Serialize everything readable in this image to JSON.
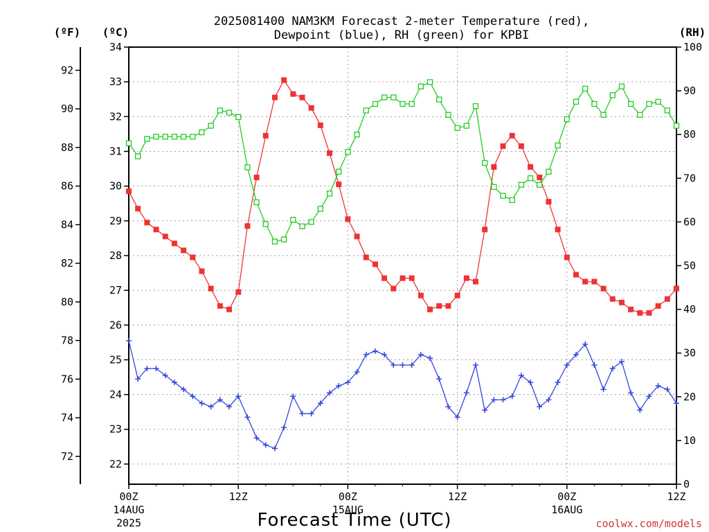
{
  "chart_data": {
    "type": "line",
    "title_lines": [
      "2025081400 NAM3KM Forecast 2-meter Temperature (red),",
      "Dewpoint (blue), RH (green) for KPBI"
    ],
    "xlabel": "Forecast Time (UTC)",
    "credit": "coolwx.com/models",
    "units": {
      "fahrenheit": "(ºF)",
      "celsius": "(ºC)",
      "rh": "(RH)"
    },
    "x_range_hours": [
      0,
      60
    ],
    "x_ticks": [
      {
        "hour": 0,
        "label": "00Z",
        "date": "14AUG",
        "year": "2025"
      },
      {
        "hour": 12,
        "label": "12Z",
        "date": "",
        "year": ""
      },
      {
        "hour": 24,
        "label": "00Z",
        "date": "15AUG",
        "year": ""
      },
      {
        "hour": 36,
        "label": "12Z",
        "date": "",
        "year": ""
      },
      {
        "hour": 48,
        "label": "00Z",
        "date": "16AUG",
        "year": ""
      },
      {
        "hour": 60,
        "label": "12Z",
        "date": "",
        "year": ""
      }
    ],
    "celsius_range": [
      21.42,
      34
    ],
    "celsius_ticks": [
      22,
      23,
      24,
      25,
      26,
      27,
      28,
      29,
      30,
      31,
      32,
      33,
      34
    ],
    "fahrenheit_ticks": [
      72,
      74,
      76,
      78,
      80,
      82,
      84,
      86,
      88,
      90,
      92
    ],
    "rh_range": [
      0,
      100
    ],
    "rh_ticks": [
      0,
      10,
      20,
      30,
      40,
      50,
      60,
      70,
      80,
      90,
      100
    ],
    "grid": true,
    "series": [
      {
        "variable": "temperature",
        "axis": "celsius",
        "color": "#ee3333",
        "marker": "filled-square",
        "x": [
          0,
          1,
          2,
          3,
          4,
          5,
          6,
          7,
          8,
          9,
          10,
          11,
          12,
          13,
          14,
          15,
          16,
          17,
          18,
          19,
          20,
          21,
          22,
          23,
          24,
          25,
          26,
          27,
          28,
          29,
          30,
          31,
          32,
          33,
          34,
          35,
          36,
          37,
          38,
          39,
          40,
          41,
          42,
          43,
          44,
          45,
          46,
          47,
          48,
          49,
          50,
          51,
          52,
          53,
          54,
          55,
          56,
          57,
          58,
          59,
          60
        ],
        "values": [
          29.85,
          29.35,
          28.95,
          28.75,
          28.55,
          28.35,
          28.15,
          27.95,
          27.55,
          27.05,
          26.55,
          26.45,
          26.95,
          28.85,
          30.25,
          31.45,
          32.55,
          33.05,
          32.65,
          32.55,
          32.25,
          31.75,
          30.95,
          30.05,
          29.05,
          28.55,
          27.95,
          27.75,
          27.35,
          27.05,
          27.35,
          27.35,
          26.85,
          26.45,
          26.55,
          26.55,
          26.85,
          27.35,
          27.25,
          28.75,
          30.55,
          31.15,
          31.45,
          31.15,
          30.55,
          30.25,
          29.55,
          28.75,
          27.95,
          27.45,
          27.25,
          27.25,
          27.05,
          26.75,
          26.65,
          26.45,
          26.35,
          26.35,
          26.55,
          26.75,
          27.05
        ]
      },
      {
        "variable": "dewpoint",
        "axis": "celsius",
        "color": "#3344dd",
        "marker": "plus",
        "x": [
          0,
          1,
          2,
          3,
          4,
          5,
          6,
          7,
          8,
          9,
          10,
          11,
          12,
          13,
          14,
          15,
          16,
          17,
          18,
          19,
          20,
          21,
          22,
          23,
          24,
          25,
          26,
          27,
          28,
          29,
          30,
          31,
          32,
          33,
          34,
          35,
          36,
          37,
          38,
          39,
          40,
          41,
          42,
          43,
          44,
          45,
          46,
          47,
          48,
          49,
          50,
          51,
          52,
          53,
          54,
          55,
          56,
          57,
          58,
          59,
          60
        ],
        "values": [
          25.55,
          24.45,
          24.75,
          24.75,
          24.55,
          24.35,
          24.15,
          23.95,
          23.75,
          23.65,
          23.85,
          23.65,
          23.95,
          23.35,
          22.75,
          22.55,
          22.45,
          23.05,
          23.95,
          23.45,
          23.45,
          23.75,
          24.05,
          24.25,
          24.35,
          24.65,
          25.15,
          25.25,
          25.15,
          24.85,
          24.85,
          24.85,
          25.15,
          25.05,
          24.45,
          23.65,
          23.35,
          24.05,
          24.85,
          23.55,
          23.85,
          23.85,
          23.95,
          24.55,
          24.35,
          23.65,
          23.85,
          24.35,
          24.85,
          25.15,
          25.45,
          24.85,
          24.15,
          24.75,
          24.95,
          24.05,
          23.55,
          23.95,
          24.25,
          24.15,
          23.75
        ]
      },
      {
        "variable": "rh",
        "axis": "rh",
        "color": "#22cc22",
        "marker": "open-square",
        "x": [
          0,
          1,
          2,
          3,
          4,
          5,
          6,
          7,
          8,
          9,
          10,
          11,
          12,
          13,
          14,
          15,
          16,
          17,
          18,
          19,
          20,
          21,
          22,
          23,
          24,
          25,
          26,
          27,
          28,
          29,
          30,
          31,
          32,
          33,
          34,
          35,
          36,
          37,
          38,
          39,
          40,
          41,
          42,
          43,
          44,
          45,
          46,
          47,
          48,
          49,
          50,
          51,
          52,
          53,
          54,
          55,
          56,
          57,
          58,
          59,
          60
        ],
        "values": [
          78,
          75,
          79,
          79.5,
          79.5,
          79.5,
          79.5,
          79.5,
          80.5,
          82,
          85.5,
          85,
          84,
          72.5,
          64.5,
          59.5,
          55.5,
          56,
          60.5,
          59,
          60,
          63,
          66.5,
          71.5,
          76,
          80,
          85.5,
          87,
          88.5,
          88.5,
          87,
          87,
          91,
          92,
          88,
          84.5,
          81.5,
          82,
          86.5,
          73.5,
          68,
          66,
          65,
          68.5,
          70,
          68.5,
          71.5,
          77.5,
          83.5,
          87.5,
          90.5,
          87,
          84.5,
          89,
          91,
          87,
          84.5,
          87,
          87.5,
          85.5,
          82
        ]
      }
    ]
  }
}
